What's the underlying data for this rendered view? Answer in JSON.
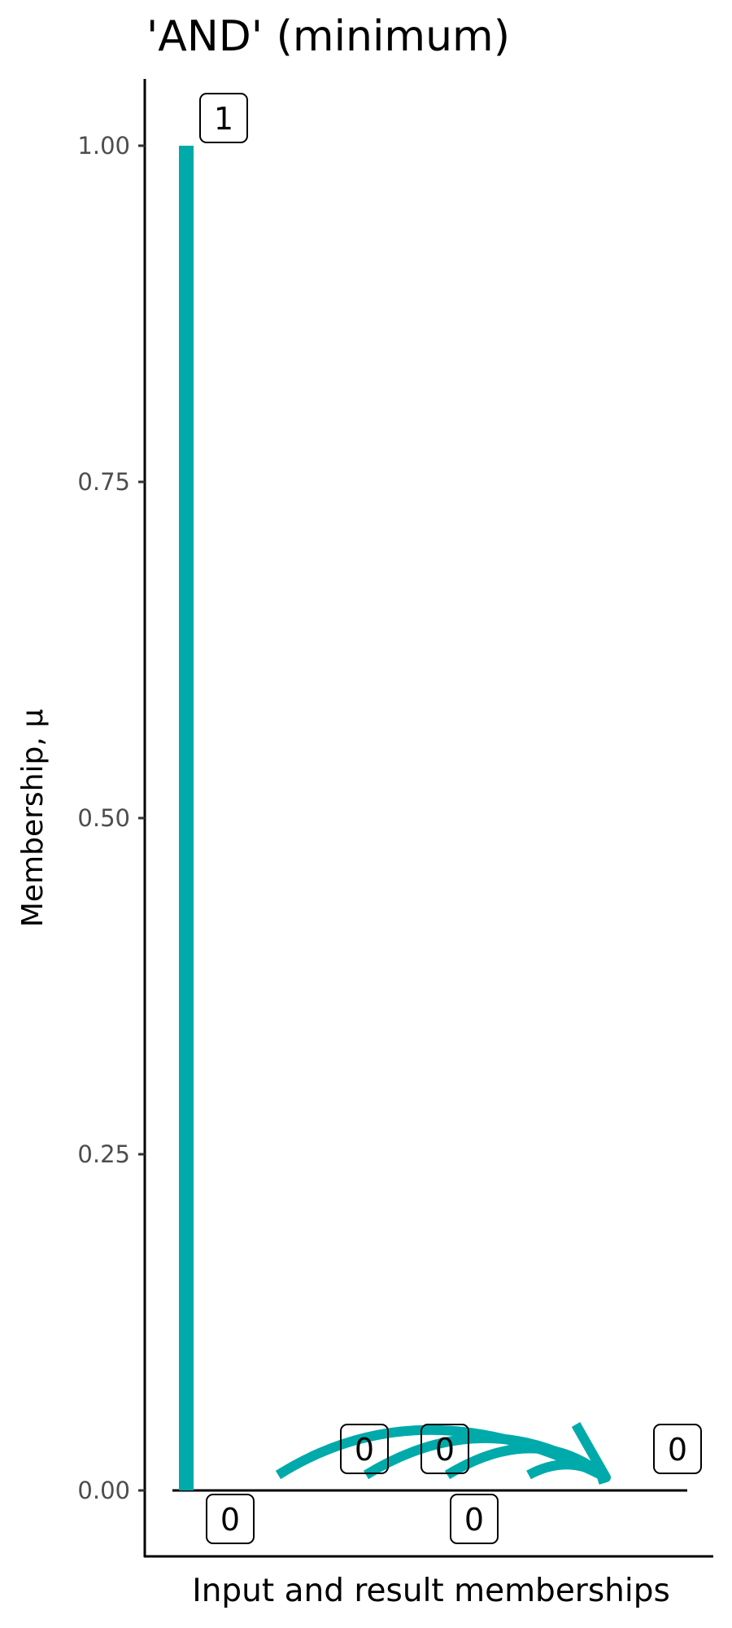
{
  "chart_data": {
    "type": "bar",
    "title": "'AND' (minimum)",
    "xlabel": "Input and result memberships",
    "ylabel": "Membership, μ",
    "ylim": [
      -0.04,
      1.1
    ],
    "yticks": [
      0.0,
      0.25,
      0.5,
      0.75,
      1.0
    ],
    "ytick_labels": [
      "0.00",
      "0.25",
      "0.50",
      "0.75",
      "1.00"
    ],
    "grid": false,
    "color": "#00AAAA",
    "bars": [
      {
        "label": "1",
        "value": 1
      },
      {
        "label": "0",
        "value": 0
      }
    ],
    "baseline_label": "0",
    "inputs": [
      {
        "label": "0",
        "value": 0
      },
      {
        "label": "0",
        "value": 0
      }
    ],
    "result": {
      "label": "0",
      "value": 0
    }
  }
}
